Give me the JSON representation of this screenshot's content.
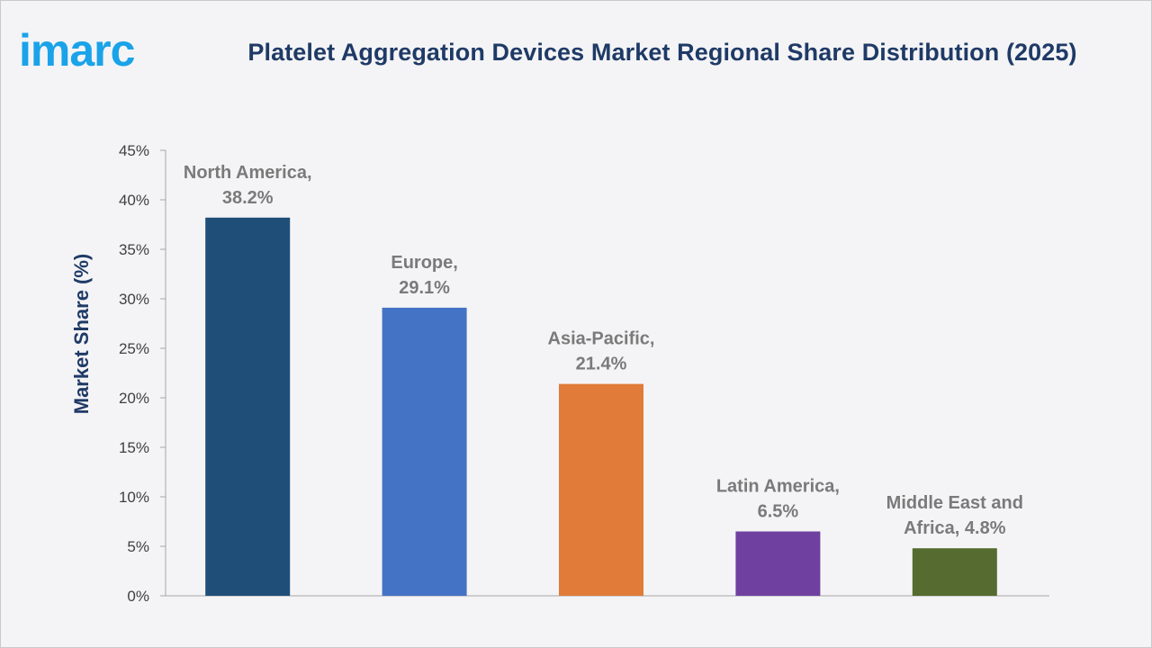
{
  "brand": {
    "logo_text": "imarc",
    "logo_color": "#1aa3e8"
  },
  "chart_data": {
    "type": "bar",
    "title": "Platelet Aggregation Devices Market Regional Share Distribution (2025)",
    "ylabel": "Market Share (%)",
    "xlabel": "",
    "categories": [
      "North America",
      "Europe",
      "Asia-Pacific",
      "Latin America",
      "Middle East and Africa"
    ],
    "values": [
      38.2,
      29.1,
      21.4,
      6.5,
      4.8
    ],
    "data_labels": [
      [
        "North America,",
        "38.2%"
      ],
      [
        "Europe,",
        "29.1%"
      ],
      [
        "Asia-Pacific,",
        "21.4%"
      ],
      [
        "Latin America,",
        "6.5%"
      ],
      [
        "Middle East and",
        "Africa, 4.8%"
      ]
    ],
    "colors": [
      "#1f4e79",
      "#4472c4",
      "#e07b39",
      "#7040a0",
      "#556b2f"
    ],
    "ylim": [
      0,
      45
    ],
    "yticks": [
      0,
      5,
      10,
      15,
      20,
      25,
      30,
      35,
      40,
      45
    ],
    "ytick_labels": [
      "0%",
      "5%",
      "10%",
      "15%",
      "20%",
      "25%",
      "30%",
      "35%",
      "40%",
      "45%"
    ],
    "grid": false,
    "legend": "none"
  }
}
